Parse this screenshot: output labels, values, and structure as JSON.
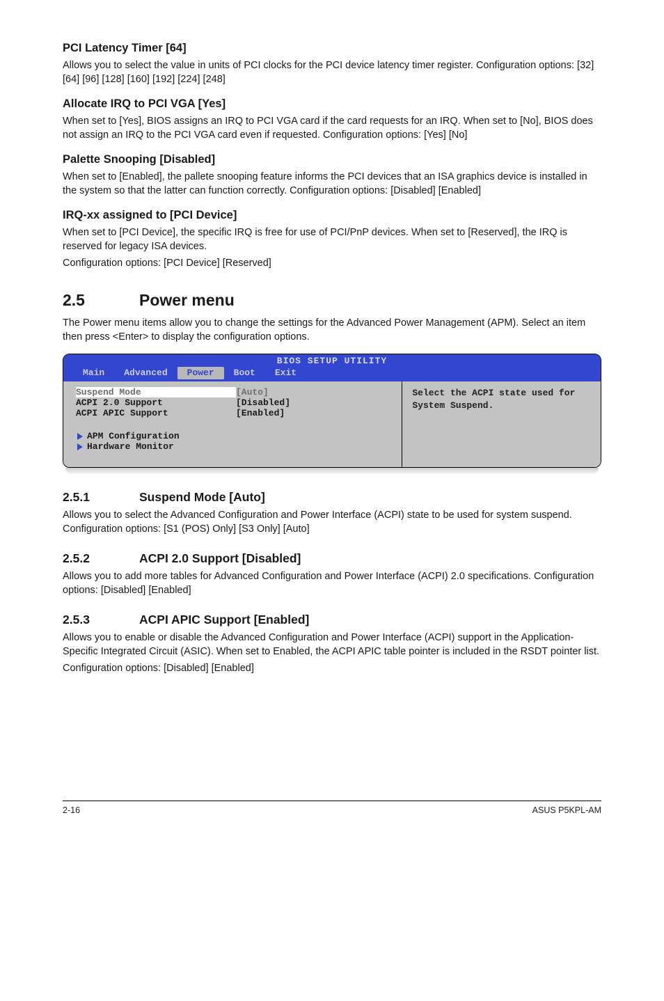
{
  "sections": [
    {
      "title": "PCI Latency Timer [64]",
      "paras": [
        "Allows you to select the value in units of PCI clocks for the PCI device latency timer register. Configuration options: [32] [64] [96] [128] [160] [192] [224] [248]"
      ]
    },
    {
      "title": "Allocate IRQ to PCI VGA [Yes]",
      "paras": [
        "When set to [Yes], BIOS assigns an IRQ to PCI VGA card if the card requests for an IRQ. When set to [No], BIOS does not assign an IRQ to the PCI VGA card even if requested. Configuration options: [Yes] [No]"
      ]
    },
    {
      "title": "Palette Snooping [Disabled]",
      "paras": [
        "When set to [Enabled], the pallete snooping feature informs the PCI devices that an ISA graphics device is installed in the system so that the latter can function correctly. Configuration options: [Disabled] [Enabled]"
      ]
    },
    {
      "title": "IRQ-xx assigned to [PCI Device]",
      "paras": [
        "When set to [PCI Device], the specific IRQ is free for use of PCI/PnP devices. When set to [Reserved], the IRQ is reserved for legacy ISA devices.",
        "Configuration options: [PCI Device] [Reserved]"
      ]
    }
  ],
  "powerMenu": {
    "num": "2.5",
    "title": "Power menu",
    "intro": "The Power menu items allow you to change the settings for the Advanced Power Management (APM). Select an item then press <Enter> to display the configuration options."
  },
  "bios": {
    "headerTitle": "BIOS SETUP UTILITY",
    "tabs": [
      "Main",
      "Advanced",
      "Power",
      "Boot",
      "Exit"
    ],
    "activeTab": 2,
    "rows": [
      {
        "label": "Suspend Mode",
        "value": "[Auto]",
        "hl": true
      },
      {
        "label": "ACPI 2.0 Support",
        "value": "[Disabled]",
        "hl": false
      },
      {
        "label": "ACPI APIC Support",
        "value": "[Enabled]",
        "hl": false
      }
    ],
    "subItems": [
      "APM Configuration",
      "Hardware Monitor"
    ],
    "help": "Select the ACPI state used for System Suspend.",
    "colors": {
      "headerBg": "#3246d0",
      "headerText": "#d8d8f0",
      "bodyBg": "#c3c3c3",
      "hlBg": "#ffffff",
      "hlText": "#6e6e6e",
      "triangle": "#3246d0"
    }
  },
  "subsections": [
    {
      "num": "2.5.1",
      "title": "Suspend Mode [Auto]",
      "paras": [
        "Allows you to select the Advanced Configuration and Power Interface (ACPI) state to be used for system suspend. Configuration options: [S1 (POS) Only] [S3 Only] [Auto]"
      ]
    },
    {
      "num": "2.5.2",
      "title": "ACPI 2.0 Support [Disabled]",
      "paras": [
        "Allows you to add more tables for Advanced Configuration and Power Interface (ACPI) 2.0 specifications. Configuration options: [Disabled] [Enabled]"
      ]
    },
    {
      "num": "2.5.3",
      "title": "ACPI APIC Support [Enabled]",
      "paras": [
        "Allows you to enable or disable the Advanced Configuration and Power Interface (ACPI) support in the Application-Specific Integrated Circuit (ASIC). When set to Enabled, the ACPI APIC table pointer is included in the RSDT pointer list.",
        "Configuration options: [Disabled] [Enabled]"
      ]
    }
  ],
  "footer": {
    "left": "2-16",
    "right": "ASUS P5KPL-AM"
  }
}
